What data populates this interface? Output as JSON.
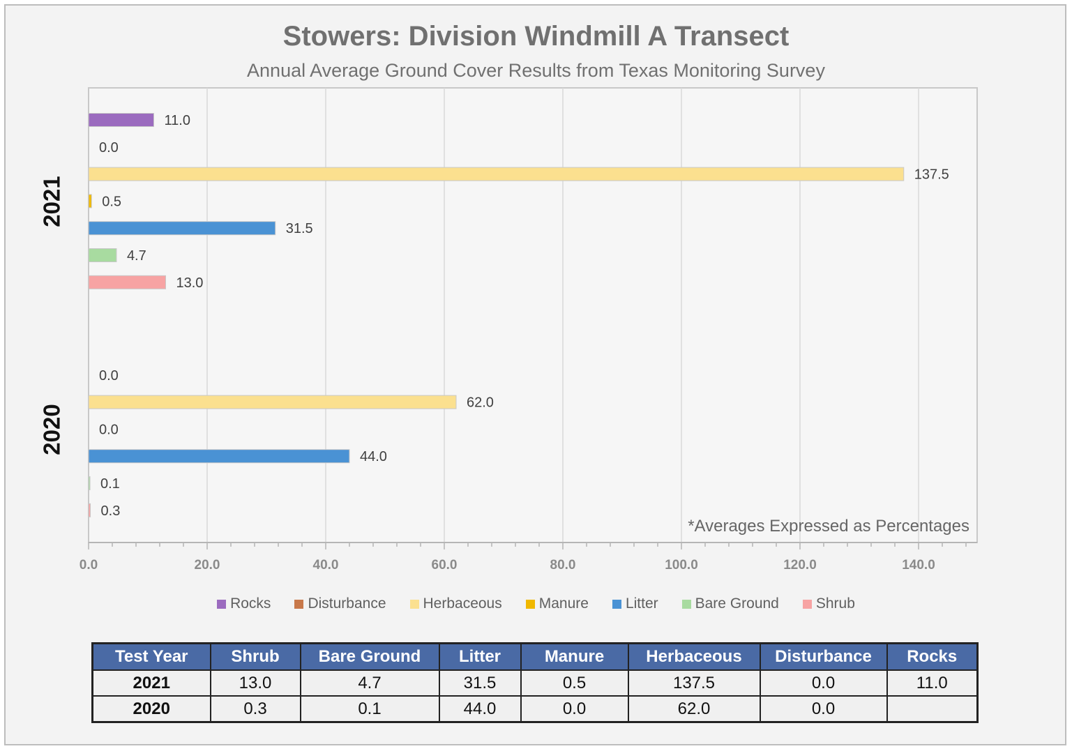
{
  "chart_data": {
    "type": "bar",
    "orientation": "horizontal",
    "title": "Stowers: Division Windmill A Transect",
    "subtitle": "Annual Average Ground Cover Results from Texas Monitoring Survey",
    "note": "*Averages Expressed as Percentages",
    "xlim": [
      0,
      150
    ],
    "x_ticks": [
      "0.0",
      "20.0",
      "40.0",
      "60.0",
      "80.0",
      "100.0",
      "120.0",
      "140.0"
    ],
    "grid": "vertical",
    "legend_position": "bottom",
    "groups": [
      {
        "label": "2021",
        "bars": [
          {
            "series": "Rocks",
            "value": 11.0,
            "label": "11.0"
          },
          {
            "series": "Disturbance",
            "value": 0.0,
            "label": "0.0"
          },
          {
            "series": "Herbaceous",
            "value": 137.5,
            "label": "137.5"
          },
          {
            "series": "Manure",
            "value": 0.5,
            "label": "0.5"
          },
          {
            "series": "Litter",
            "value": 31.5,
            "label": "31.5"
          },
          {
            "series": "Bare Ground",
            "value": 4.7,
            "label": "4.7"
          },
          {
            "series": "Shrub",
            "value": 13.0,
            "label": "13.0"
          }
        ]
      },
      {
        "label": "2020",
        "bars": [
          {
            "series": "Rocks",
            "value": null,
            "label": ""
          },
          {
            "series": "Disturbance",
            "value": 0.0,
            "label": "0.0"
          },
          {
            "series": "Herbaceous",
            "value": 62.0,
            "label": "62.0"
          },
          {
            "series": "Manure",
            "value": 0.0,
            "label": "0.0"
          },
          {
            "series": "Litter",
            "value": 44.0,
            "label": "44.0"
          },
          {
            "series": "Bare Ground",
            "value": 0.1,
            "label": "0.1"
          },
          {
            "series": "Shrub",
            "value": 0.3,
            "label": "0.3"
          }
        ]
      }
    ],
    "legend": [
      {
        "name": "Rocks",
        "color": "#9b6bbf"
      },
      {
        "name": "Disturbance",
        "color": "#c8784a"
      },
      {
        "name": "Herbaceous",
        "color": "#fbe08f"
      },
      {
        "name": "Manure",
        "color": "#f0b800"
      },
      {
        "name": "Litter",
        "color": "#4a92d4"
      },
      {
        "name": "Bare Ground",
        "color": "#a8dba0"
      },
      {
        "name": "Shrub",
        "color": "#f7a3a3"
      }
    ]
  },
  "table": {
    "headers": [
      "Test Year",
      "Shrub",
      "Bare Ground",
      "Litter",
      "Manure",
      "Herbaceous",
      "Disturbance",
      "Rocks"
    ],
    "rows": [
      [
        "2021",
        "13.0",
        "4.7",
        "31.5",
        "0.5",
        "137.5",
        "0.0",
        "11.0"
      ],
      [
        "2020",
        "0.3",
        "0.1",
        "44.0",
        "0.0",
        "62.0",
        "0.0",
        ""
      ]
    ]
  }
}
